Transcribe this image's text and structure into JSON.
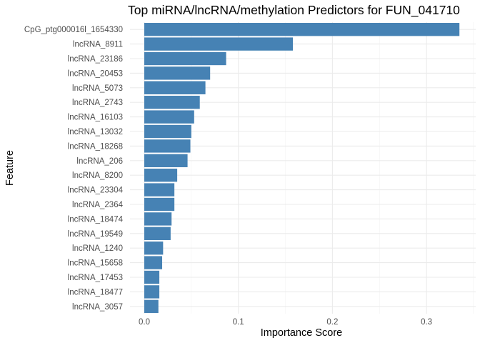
{
  "chart_data": {
    "type": "bar",
    "orientation": "horizontal",
    "title": "Top miRNA/lncRNA/methylation Predictors for FUN_041710",
    "xlabel": "Importance Score",
    "ylabel": "Feature",
    "xlim": [
      0,
      0.35
    ],
    "xticks": [
      0.0,
      0.1,
      0.2,
      0.3
    ],
    "xtick_labels": [
      "0.0",
      "0.1",
      "0.2",
      "0.3"
    ],
    "grid": true,
    "legend": "none",
    "bar_color": "#4682B4",
    "categories": [
      "CpG_ptg000016l_1654330",
      "lncRNA_8911",
      "lncRNA_23186",
      "lncRNA_20453",
      "lncRNA_5073",
      "lncRNA_2743",
      "lncRNA_16103",
      "lncRNA_13032",
      "lncRNA_18268",
      "lncRNA_206",
      "lncRNA_8200",
      "lncRNA_23304",
      "lncRNA_2364",
      "lncRNA_18474",
      "lncRNA_19549",
      "lncRNA_1240",
      "lncRNA_15658",
      "lncRNA_17453",
      "lncRNA_18477",
      "lncRNA_3057"
    ],
    "values": [
      0.335,
      0.158,
      0.087,
      0.07,
      0.065,
      0.059,
      0.053,
      0.05,
      0.049,
      0.046,
      0.035,
      0.032,
      0.032,
      0.029,
      0.028,
      0.02,
      0.019,
      0.016,
      0.016,
      0.015
    ]
  }
}
